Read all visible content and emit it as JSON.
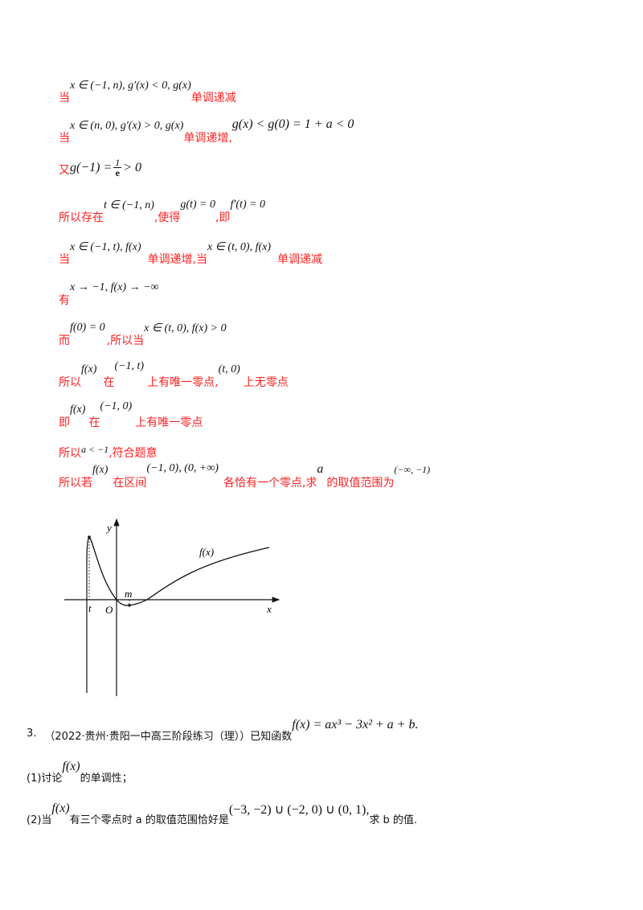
{
  "solution": {
    "l1": {
      "a": "当",
      "m1": "x ∈ (−1, n), g′(x) < 0, g(x)",
      "b": "单调递减"
    },
    "l2": {
      "a": "当",
      "m1": "x ∈ (n, 0), g′(x) > 0, g(x)",
      "b": "单调递增,",
      "m2": "g(x) < g(0) = 1 + a < 0"
    },
    "l3": {
      "a": "又",
      "m1": "g(−1) =",
      "num": "1",
      "den": "e",
      "m2": "> 0"
    },
    "l4": {
      "a": "所以存在",
      "m1": "t ∈ (−1, n)",
      "b": ",使得",
      "m2": "g(t) = 0",
      "c": ",即",
      "m3": "f′(t) = 0"
    },
    "l5": {
      "a": "当",
      "m1": "x ∈ (−1, t), f(x)",
      "b": "单调递增,当",
      "m2": "x ∈ (t, 0), f(x)",
      "c": "单调递减"
    },
    "l6": {
      "a": "有",
      "m1": "x → −1, f(x) → −∞"
    },
    "l7": {
      "a": "而",
      "m1": "f(0) = 0",
      "b": ",所以当",
      "m2": "x ∈ (t, 0), f(x) > 0"
    },
    "l8": {
      "a": "所以",
      "m1": "f(x)",
      "b": "在",
      "m2": "(−1, t)",
      "c": "上有唯一零点,",
      "m3": "(t, 0)",
      "d": "上无零点"
    },
    "l9": {
      "a": "即",
      "m1": "f(x)",
      "b": "在",
      "m2": "(−1, 0)",
      "c": "上有唯一零点"
    },
    "l10": {
      "a": "所以",
      "m1": "a < −1",
      "b": ",符合题意"
    },
    "l11": {
      "a": "所以若",
      "m1": "f(x)",
      "b": "在区间",
      "m2": "(−1, 0), (0, +∞)",
      "c": "各恰有一个零点,求",
      "m3": "a",
      "d": "的取值范围为",
      "m4": "(−∞, −1)"
    }
  },
  "figure": {
    "y_label": "y",
    "x_label": "x",
    "origin_label": "O",
    "t_label": "t",
    "m_label": "m",
    "curve_label": "f(x)"
  },
  "problem3": {
    "number": "3.",
    "source": "（2022·贵州·贵阳一中高三阶段练习（理））已知函数",
    "func": "f(x) = ax³ − 3x² + a + b.",
    "q1_a": "(1)讨论",
    "q1_m": "f(x)",
    "q1_b": "的单调性；",
    "q2_a": "(2)当",
    "q2_m": "f(x)",
    "q2_b": "有三个零点时 a 的取值范围恰好是",
    "q2_m2": "(−3, −2) ∪ (−2, 0) ∪ (0, 1),",
    "q2_c": "求 b 的值."
  }
}
